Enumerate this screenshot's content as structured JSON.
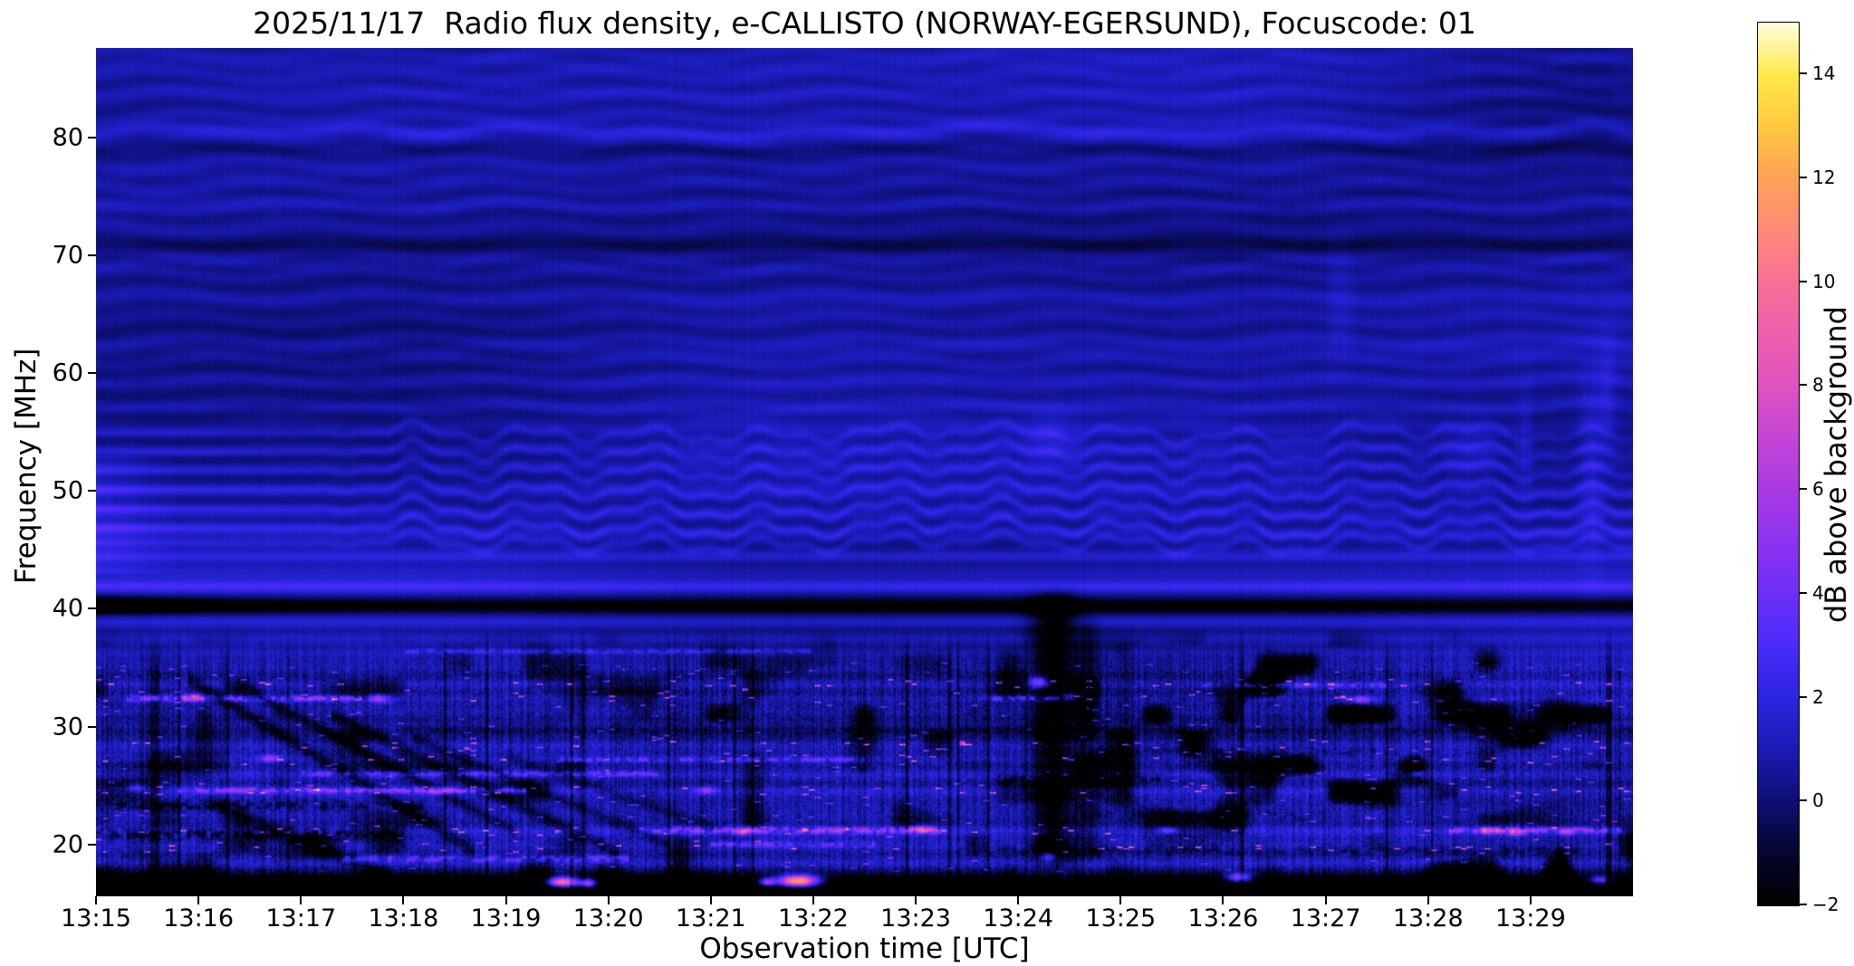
{
  "page": {
    "background": "#ffffff"
  },
  "chart_data": {
    "type": "heatmap",
    "title": "2025/11/17  Radio flux density, e-CALLISTO (NORWAY-EGERSUND), Focuscode: 01",
    "xlabel": "Observation time [UTC]",
    "ylabel": "Frequency [MHz]",
    "x_ticks": [
      "13:15",
      "13:16",
      "13:17",
      "13:18",
      "13:19",
      "13:20",
      "13:21",
      "13:22",
      "13:23",
      "13:24",
      "13:25",
      "13:26",
      "13:27",
      "13:28",
      "13:29"
    ],
    "x_range": [
      "13:15",
      "13:30"
    ],
    "duration_min": 15,
    "y_ticks": [
      "20",
      "30",
      "40",
      "50",
      "60",
      "70",
      "80"
    ],
    "y_range_mhz": [
      15.6,
      87.6
    ],
    "y_orientation": "frequency increases upward",
    "grid": false,
    "legend": "none",
    "colorbar": {
      "label": "dB above background",
      "ticks": [
        "14",
        "12",
        "10",
        "8",
        "6",
        "4",
        "2",
        "0",
        "−2"
      ],
      "range": [
        -2,
        15
      ],
      "colormap_stops": [
        {
          "v": -2,
          "color": "#000000"
        },
        {
          "v": -1,
          "color": "#06052e"
        },
        {
          "v": 0,
          "color": "#0d0f74"
        },
        {
          "v": 1,
          "color": "#1a1bb4"
        },
        {
          "v": 2,
          "color": "#2b25e0"
        },
        {
          "v": 3,
          "color": "#4a2bfb"
        },
        {
          "v": 4,
          "color": "#6d2ff7"
        },
        {
          "v": 5,
          "color": "#8c34f0"
        },
        {
          "v": 6,
          "color": "#a93ae4"
        },
        {
          "v": 7,
          "color": "#c445d6"
        },
        {
          "v": 8,
          "color": "#e052c1"
        },
        {
          "v": 9,
          "color": "#ee5fae"
        },
        {
          "v": 10,
          "color": "#f96f95"
        },
        {
          "v": 11,
          "color": "#ff8a77"
        },
        {
          "v": 12,
          "color": "#ffa158"
        },
        {
          "v": 13,
          "color": "#ffc83e"
        },
        {
          "v": 14,
          "color": "#ffe94a"
        },
        {
          "v": 15,
          "color": "#fffde0"
        }
      ]
    },
    "notable_features": [
      "Bright blue horizontal interference band at ~41–42 MHz across the full duration, with a black absorption lane just below (40–41 MHz) strongest 13:15–13:17",
      "Coherent wavy ionospheric fringe bands between ~44 and 56 MHz, straight before ~13:17 then undulating",
      "Narrow slightly wavy band near 80.5 MHz; dark lane near 70.5 MHz; mostly dark navy background above 56 MHz",
      "Dense RFI speckle (magenta/pink, 4–9 dB) below ~36 MHz concentrated near 21, 24.5, 27 and 32.5 MHz with vertical striation noise",
      "Diagonal dark sweeps descending from ~33 MHz at 13:16 to ~20 MHz at 13:19",
      "Vertical black dropout around 13:24:10–13:24:40 spanning ~18–42 MHz with a pink spot near 34 MHz",
      "Saturated yellow bursts (13–15 dB) on the bottom edge (~17 MHz) near 13:19:30 and 13:21:50; weaker pink events near 13:26:10 and 13:29:40",
      "Black bottom band below ~17.5 MHz"
    ],
    "render": {
      "seed": 1317,
      "base": 0.55,
      "broad": 0.5,
      "lowTop": 38.5,
      "bands": [
        [
          86.3,
          0.6,
          0.5,
          2,
          0,
          0
        ],
        [
          84.0,
          0.5,
          0.4,
          2,
          0,
          0
        ],
        [
          80.6,
          0.55,
          1.2,
          2,
          0,
          0
        ],
        [
          79.2,
          0.5,
          -0.6,
          2,
          0,
          0
        ],
        [
          76.8,
          0.6,
          0.35,
          2,
          0,
          0
        ],
        [
          74.4,
          0.7,
          0.5,
          2,
          0,
          0
        ],
        [
          70.8,
          0.6,
          -0.8,
          0,
          0,
          0
        ],
        [
          69.3,
          0.5,
          0.5,
          2,
          0,
          0
        ],
        [
          66.2,
          1.0,
          0.4,
          2,
          0,
          0
        ],
        [
          62.1,
          0.8,
          0.5,
          2,
          0,
          0
        ],
        [
          59.4,
          0.6,
          0.4,
          2,
          0,
          0
        ],
        [
          57.0,
          0.5,
          0.5,
          2,
          0,
          0
        ],
        [
          54.9,
          0.38,
          0.9,
          1,
          0,
          0
        ],
        [
          53.3,
          0.38,
          1.0,
          1,
          0,
          0
        ],
        [
          51.7,
          0.38,
          1.1,
          1,
          0,
          0
        ],
        [
          50.1,
          0.38,
          1.25,
          1,
          0,
          0
        ],
        [
          48.5,
          0.38,
          1.35,
          1,
          0,
          0
        ],
        [
          46.9,
          0.4,
          1.45,
          1,
          0,
          0
        ],
        [
          45.6,
          0.4,
          1.0,
          1,
          0,
          0
        ],
        [
          44.4,
          0.45,
          0.8,
          0,
          0,
          0
        ],
        [
          43.3,
          0.45,
          0.6,
          0,
          0,
          0
        ],
        [
          41.9,
          0.5,
          2.3,
          0,
          0,
          0
        ],
        [
          40.3,
          0.75,
          -2.4,
          0,
          0,
          1
        ],
        [
          38.8,
          0.5,
          0.9,
          0,
          0,
          0
        ],
        [
          37.6,
          0.45,
          0.5,
          0,
          0,
          0
        ],
        [
          36.3,
          0.4,
          0.9,
          0,
          1,
          0
        ],
        [
          34.9,
          0.4,
          0.6,
          0,
          0,
          0
        ],
        [
          33.6,
          0.35,
          0.7,
          0,
          1,
          0
        ],
        [
          32.4,
          0.35,
          1.0,
          0,
          1,
          0
        ],
        [
          31.1,
          0.35,
          0.4,
          0,
          0,
          0
        ],
        [
          29.7,
          0.4,
          -0.7,
          0,
          0,
          0
        ],
        [
          28.5,
          0.35,
          0.8,
          0,
          1,
          0
        ],
        [
          27.2,
          0.35,
          0.9,
          0,
          1,
          0
        ],
        [
          25.9,
          0.35,
          0.6,
          0,
          0,
          0
        ],
        [
          24.6,
          0.35,
          1.0,
          0,
          1,
          0
        ],
        [
          23.2,
          0.35,
          0.5,
          0,
          0,
          0
        ],
        [
          21.2,
          0.4,
          1.2,
          0,
          1,
          0
        ],
        [
          19.8,
          0.4,
          0.7,
          0,
          1,
          0
        ],
        [
          18.4,
          0.4,
          0.6,
          0,
          0,
          0
        ],
        [
          16.6,
          1.1,
          -3.0,
          0,
          0,
          0
        ]
      ],
      "segments": [
        [
          32.4,
          0.3,
          2.6,
          4.5,
          0.25
        ],
        [
          24.6,
          0.8,
          4.2,
          4.0,
          0.25
        ],
        [
          26.0,
          2.0,
          5.5,
          2.8,
          0.22
        ],
        [
          21.2,
          5.3,
          8.3,
          4.2,
          0.28
        ],
        [
          21.2,
          13.2,
          14.9,
          4.2,
          0.25
        ],
        [
          27.2,
          4.5,
          7.5,
          2.8,
          0.22
        ],
        [
          32.4,
          8.6,
          9.4,
          3.8,
          0.25
        ],
        [
          33.5,
          10.8,
          12.6,
          2.8,
          0.22
        ],
        [
          36.4,
          3.0,
          7.0,
          2.0,
          0.2
        ],
        [
          18.8,
          2.4,
          5.2,
          3.0,
          0.3
        ],
        [
          20.0,
          6.0,
          7.6,
          2.8,
          0.25
        ],
        [
          20.9,
          0.0,
          3.0,
          -2.6,
          0.5
        ],
        [
          23.3,
          0.2,
          3.2,
          -2.0,
          0.4
        ],
        [
          29.7,
          3.0,
          15.0,
          -0.8,
          0.3
        ],
        [
          25.5,
          8.8,
          10.4,
          -1.5,
          0.5
        ],
        [
          19.5,
          8.5,
          14.5,
          -1.2,
          0.5
        ],
        [
          22.5,
          9.6,
          12.0,
          -1.0,
          0.45
        ],
        [
          28.0,
          9.8,
          12.5,
          -0.9,
          0.5
        ]
      ],
      "diagonals": [
        [
          0.9,
          34.0,
          -5.2,
          2.8,
          0.6,
          -2.0
        ],
        [
          1.5,
          33.0,
          -4.6,
          2.6,
          0.5,
          -1.7
        ],
        [
          2.3,
          31.0,
          -4.2,
          2.8,
          0.6,
          -1.9
        ],
        [
          3.1,
          29.0,
          -3.6,
          2.5,
          0.5,
          -1.5
        ],
        [
          1.1,
          23.5,
          -3.5,
          1.8,
          0.7,
          -2.0
        ],
        [
          4.0,
          27.5,
          -3.0,
          2.2,
          0.5,
          -1.2
        ]
      ],
      "vertical_streaks": [
        [
          9.35,
          0.22,
          -3.4,
          17.5,
          42.5
        ],
        [
          9.7,
          0.12,
          -1.6,
          18.0,
          40.0
        ],
        [
          10.05,
          0.08,
          -1.0,
          20.0,
          38.0
        ]
      ],
      "blobs": [
        [
          4.55,
          16.8,
          13,
          0.16,
          0.45
        ],
        [
          4.8,
          16.7,
          8,
          0.08,
          0.35
        ],
        [
          6.85,
          16.9,
          15,
          0.2,
          0.5
        ],
        [
          6.55,
          16.8,
          7,
          0.08,
          0.35
        ],
        [
          11.15,
          17.2,
          7,
          0.12,
          0.4
        ],
        [
          14.68,
          17.0,
          6,
          0.1,
          0.35
        ],
        [
          9.3,
          19.0,
          5,
          0.08,
          0.5
        ],
        [
          13.6,
          21.2,
          6,
          0.1,
          0.3
        ],
        [
          13.85,
          21.0,
          5,
          0.08,
          0.3
        ],
        [
          8.05,
          21.3,
          5.5,
          0.1,
          0.3
        ],
        [
          6.3,
          21.1,
          5,
          0.09,
          0.3
        ],
        [
          2.75,
          32.4,
          5.5,
          0.1,
          0.35
        ],
        [
          0.95,
          32.5,
          5,
          0.09,
          0.3
        ],
        [
          3.35,
          24.5,
          5,
          0.1,
          0.3
        ],
        [
          5.95,
          24.6,
          4.5,
          0.09,
          0.3
        ],
        [
          9.2,
          33.8,
          6,
          0.09,
          0.5
        ],
        [
          9.5,
          32.6,
          4,
          0.07,
          0.4
        ],
        [
          12.35,
          32.3,
          4.5,
          0.1,
          0.3
        ],
        [
          10.45,
          21.2,
          4.5,
          0.09,
          0.3
        ],
        [
          14.35,
          21.1,
          5,
          0.09,
          0.3
        ],
        [
          12.9,
          26.0,
          4,
          0.08,
          0.3
        ],
        [
          1.7,
          27.3,
          4.5,
          0.1,
          0.3
        ],
        [
          0.4,
          24.8,
          4,
          0.08,
          0.3
        ],
        [
          9.3,
          54.5,
          1.0,
          0.25,
          2.2
        ],
        [
          13.45,
          53.5,
          0.9,
          0.3,
          2.5
        ],
        [
          12.15,
          66.0,
          0.6,
          0.12,
          5.0
        ],
        [
          14.6,
          52.0,
          1.2,
          0.12,
          8.0
        ],
        [
          14.75,
          58.0,
          0.9,
          0.08,
          6.0
        ],
        [
          13.95,
          54.0,
          0.7,
          0.07,
          5.0
        ]
      ]
    }
  }
}
